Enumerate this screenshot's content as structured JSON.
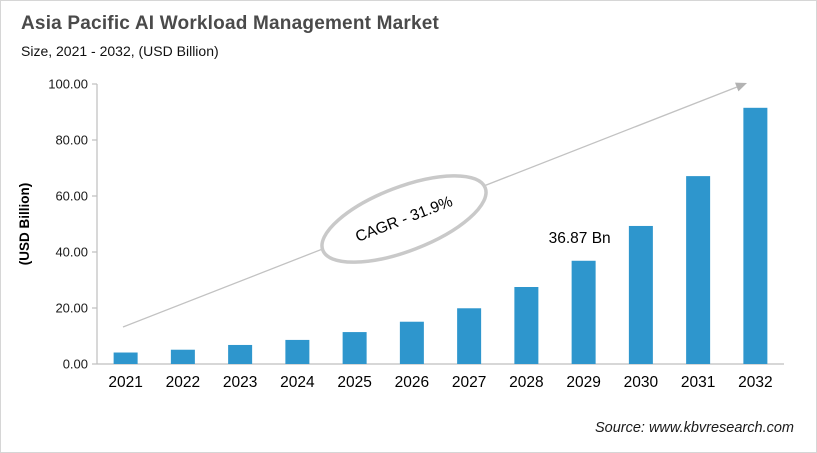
{
  "header": {
    "title": "Asia Pacific AI Workload Management Market",
    "subtitle": "Size, 2021 - 2032, (USD Billion)"
  },
  "chart_data": {
    "type": "bar",
    "title": "Asia Pacific AI Workload Management Market",
    "subtitle": "Size, 2021 - 2032, (USD Billion)",
    "categories": [
      "2021",
      "2022",
      "2023",
      "2024",
      "2025",
      "2026",
      "2027",
      "2028",
      "2029",
      "2030",
      "2031",
      "2032"
    ],
    "values": [
      4.1,
      5.1,
      6.8,
      8.6,
      11.4,
      15.1,
      19.9,
      27.5,
      36.87,
      49.3,
      67.1,
      91.5
    ],
    "xlabel": "",
    "ylabel": "(USD Billion)",
    "ylim": [
      0,
      100
    ],
    "yticks": [
      0,
      20,
      40,
      60,
      80,
      100
    ],
    "ytick_labels": [
      "0.00",
      "20.00",
      "40.00",
      "60.00",
      "80.00",
      "100.00"
    ],
    "gridlines": false,
    "legend": "none",
    "bar_color": "#2e96cd",
    "axis_color": "#bfbfbf",
    "arrow_color": "#c2c2c2",
    "ellipse_stroke": "#c9c9c9",
    "annotations": {
      "cagr_label": "CAGR - 31.9%",
      "point_label": {
        "text": "36.87 Bn",
        "category": "2029"
      },
      "trend_arrow": true
    }
  },
  "footer": {
    "source": "Source: www.kbvresearch.com"
  }
}
